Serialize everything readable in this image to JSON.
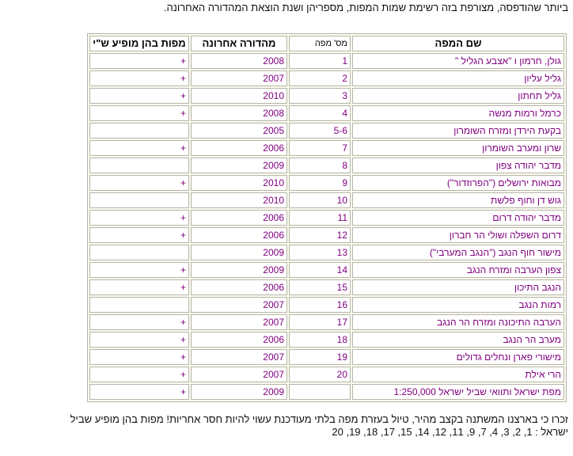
{
  "page": {
    "intro_text": "ביותר שהודפסה, מצורפת בזה רשימת שמות המפות, מספריהן ושנת הוצאת המהדורה האחרונה.",
    "footer_line1": "זכרו כי בארצנו המשתנה בקצב מהיר, טיול בעזרת מפה בלתי מעודכנת עשוי להיות חסר אחריות! מפות בהן מופיע שביל",
    "footer_line2": "ישראל : 1, 2, 3, 4, 7, 9, 11, 12, 14, 15, 17, 18, 19, 20"
  },
  "colors": {
    "data_text_purple": "#800080",
    "table_background": "#FCFCF0",
    "cell_border": "#B4B4A8"
  },
  "table": {
    "headers": {
      "name": "שם המפה",
      "number": "מס' מפה",
      "edition": "מהדורה אחרונה",
      "appears": "מפות בהן מופיע ש\"י"
    },
    "rows": [
      {
        "name": "גולן, חרמון ו \"אצבע הגליל \"",
        "number": "1",
        "edition": "2008",
        "appears": "+"
      },
      {
        "name": "גליל עליון",
        "number": "2",
        "edition": "2007",
        "appears": "+"
      },
      {
        "name": "גליל תחתון",
        "number": "3",
        "edition": "2010",
        "appears": "+"
      },
      {
        "name": "כרמל ורמות מנשה",
        "number": "4",
        "edition": "2008",
        "appears": "+"
      },
      {
        "name": "בקעת הירדן ומזרח השומרון",
        "number": "5-6",
        "edition": "2005",
        "appears": ""
      },
      {
        "name": "שרון ומערב השומרון",
        "number": "7",
        "edition": "2006",
        "appears": "+"
      },
      {
        "name": "מדבר יהודה צפון",
        "number": "8",
        "edition": "2009",
        "appears": ""
      },
      {
        "name": "מבואות ירושלים (\"הפרוזדור\")",
        "number": "9",
        "edition": "2010",
        "appears": "+"
      },
      {
        "name": "גוש דן וחוף פלשת",
        "number": "10",
        "edition": "2010",
        "appears": ""
      },
      {
        "name": "מדבר יהודה דרום",
        "number": "11",
        "edition": "2006",
        "appears": "+"
      },
      {
        "name": "דרום השפלה ושולי הר חברון",
        "number": "12",
        "edition": "2006",
        "appears": "+"
      },
      {
        "name": "מישור חוף הנגב (\"הנגב המערבי\")",
        "number": "13",
        "edition": "2009",
        "appears": ""
      },
      {
        "name": "צפון הערבה ומזרח הנגב",
        "number": "14",
        "edition": "2009",
        "appears": "+"
      },
      {
        "name": "הנגב התיכון",
        "number": "15",
        "edition": "2006",
        "appears": "+"
      },
      {
        "name": "רמות הנגב",
        "number": "16",
        "edition": "2007",
        "appears": ""
      },
      {
        "name": "הערבה התיכונה ומזרח הר הנגב",
        "number": "17",
        "edition": "2007",
        "appears": "+"
      },
      {
        "name": "מערב הר הנגב",
        "number": "18",
        "edition": "2006",
        "appears": "+"
      },
      {
        "name": "מישורי פארן ונחלים גדולים",
        "number": "19",
        "edition": "2007",
        "appears": "+"
      },
      {
        "name": "הרי אילת",
        "number": "20",
        "edition": "2007",
        "appears": "+"
      },
      {
        "name": "מפת ישראל ותוואי שביל ישראל 1:250,000",
        "number": "",
        "edition": "2009",
        "appears": "+"
      }
    ]
  }
}
